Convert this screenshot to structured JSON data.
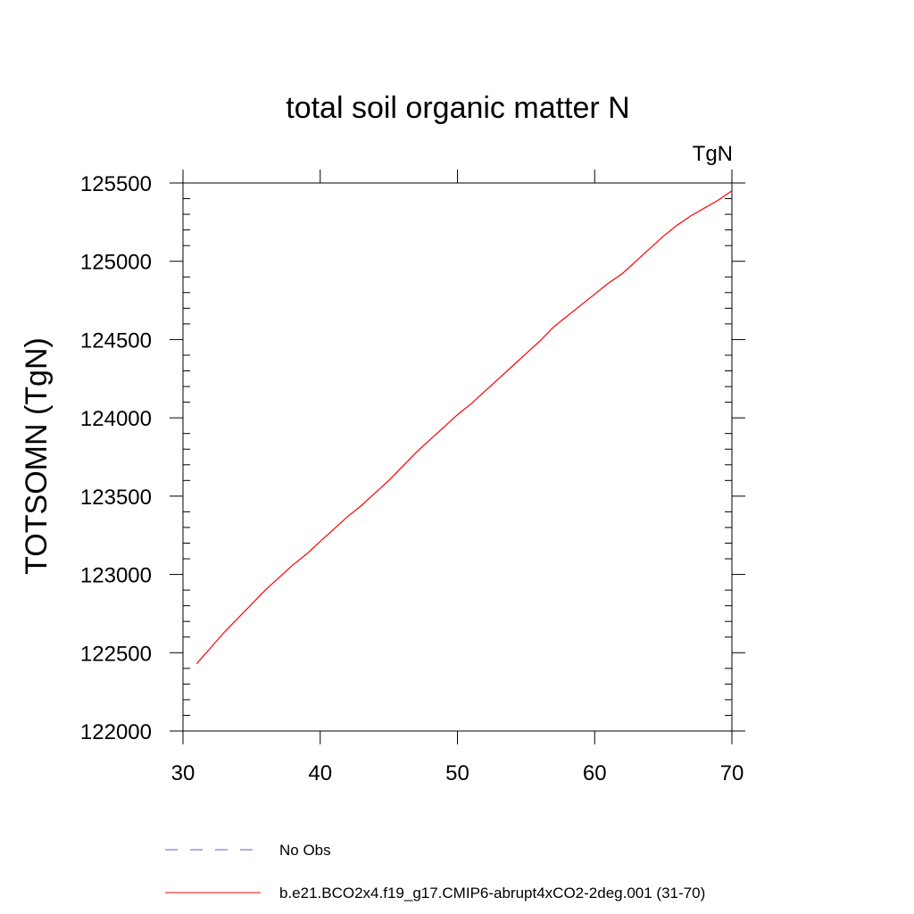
{
  "chart_data": {
    "type": "line",
    "title": "total soil organic matter N",
    "units_label": "TgN",
    "xlabel": "",
    "ylabel": "TOTSOMN  (TgN)",
    "xlim": [
      30,
      70
    ],
    "ylim": [
      122000,
      125500
    ],
    "xticks": [
      30,
      40,
      50,
      60,
      70
    ],
    "xtick_labels": [
      "30",
      "40",
      "50",
      "60",
      "70"
    ],
    "yticks": [
      122000,
      122500,
      123000,
      123500,
      124000,
      124500,
      125000,
      125500
    ],
    "ytick_labels": [
      "122000",
      "122500",
      "123000",
      "123500",
      "124000",
      "124500",
      "125000",
      "125500"
    ],
    "grid": false,
    "legend_position": "bottom",
    "series": [
      {
        "name": "No Obs",
        "color": "#6a5acd",
        "dash": "dashed",
        "x": [],
        "y": []
      },
      {
        "name": "b.e21.BCO2x4.f19_g17.CMIP6-abrupt4xCO2-2deg.001 (31-70)",
        "color": "#ff0000",
        "dash": "solid",
        "x": [
          31,
          32,
          33,
          34,
          35,
          36,
          37,
          38,
          39,
          40,
          41,
          42,
          43,
          44,
          45,
          46,
          47,
          48,
          49,
          50,
          51,
          52,
          53,
          54,
          55,
          56,
          57,
          58,
          59,
          60,
          61,
          62,
          63,
          64,
          65,
          66,
          67,
          68,
          69,
          70
        ],
        "y": [
          122430,
          122530,
          122630,
          122720,
          122810,
          122900,
          122980,
          123060,
          123130,
          123210,
          123290,
          123370,
          123440,
          123520,
          123600,
          123690,
          123780,
          123860,
          123940,
          124020,
          124090,
          124170,
          124250,
          124330,
          124410,
          124490,
          124580,
          124650,
          124720,
          124790,
          124860,
          124920,
          125000,
          125080,
          125160,
          125230,
          125290,
          125340,
          125390,
          125450
        ]
      }
    ]
  }
}
